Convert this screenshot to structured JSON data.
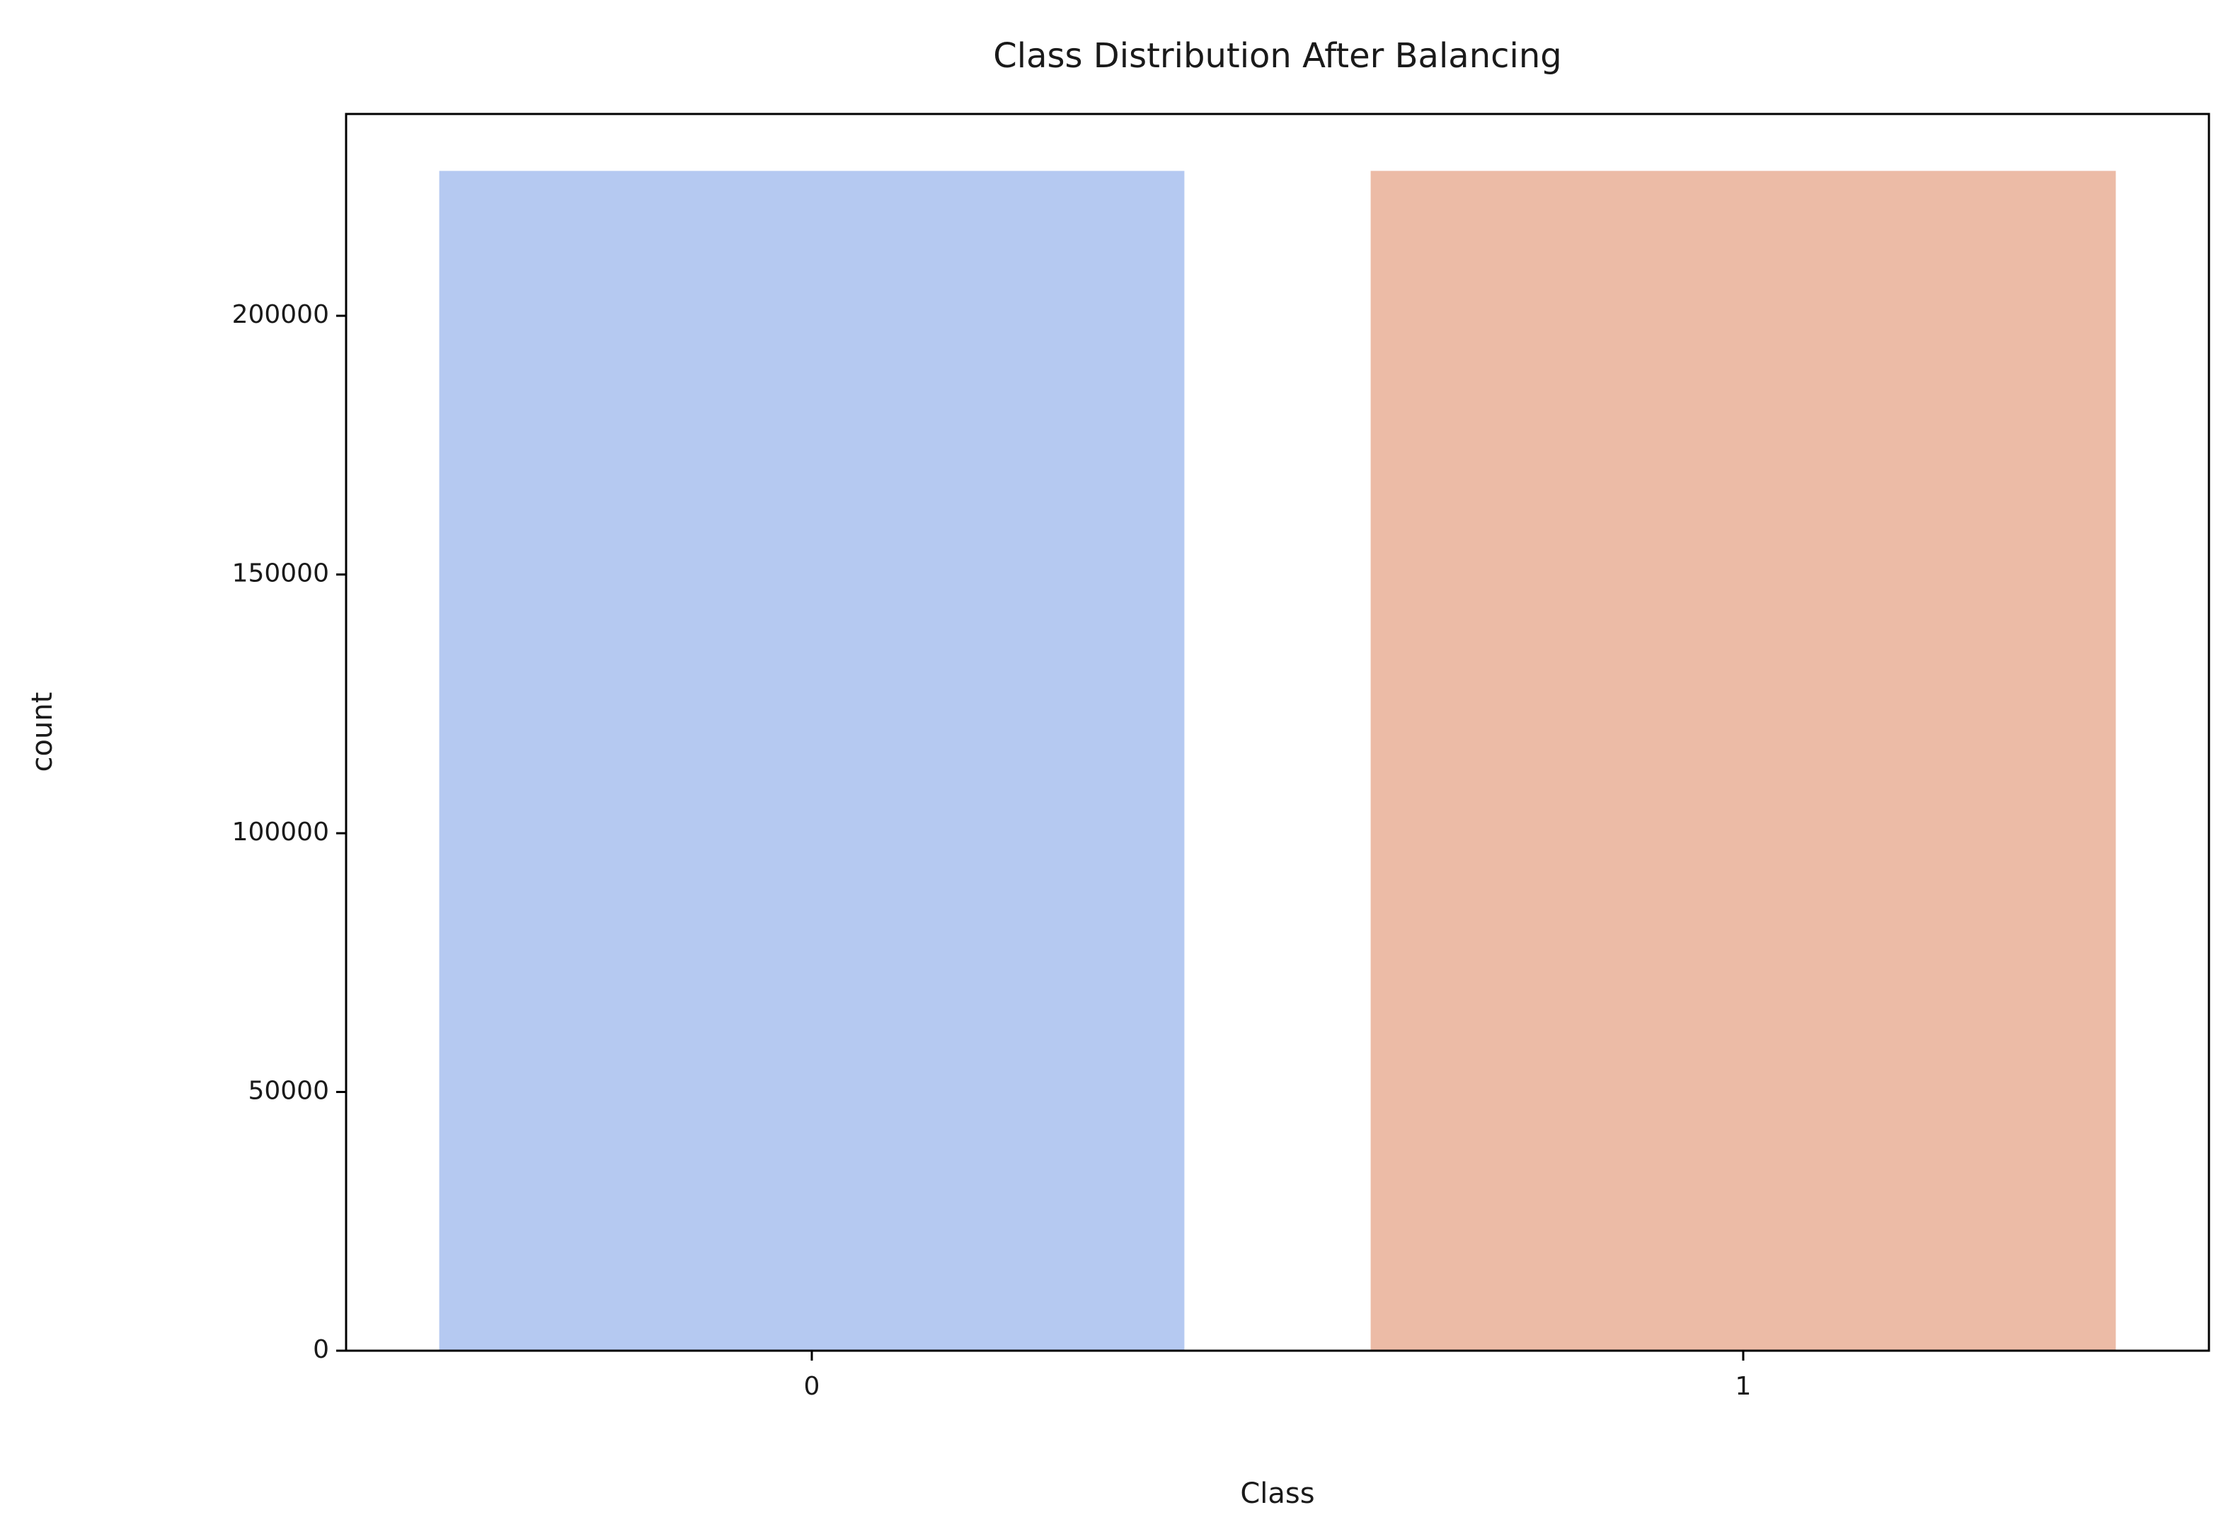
{
  "chart_data": {
    "type": "bar",
    "title": "Class Distribution After Balancing",
    "x_label": "Class",
    "y_label": "count",
    "categories": [
      "0",
      "1"
    ],
    "values": [
      228000,
      228000
    ],
    "colors": [
      "#b5c9f1",
      "#ecbba6"
    ],
    "ylim": [
      0,
      239000
    ],
    "yticks": [
      0,
      50000,
      100000,
      150000,
      200000
    ],
    "grid": false
  }
}
